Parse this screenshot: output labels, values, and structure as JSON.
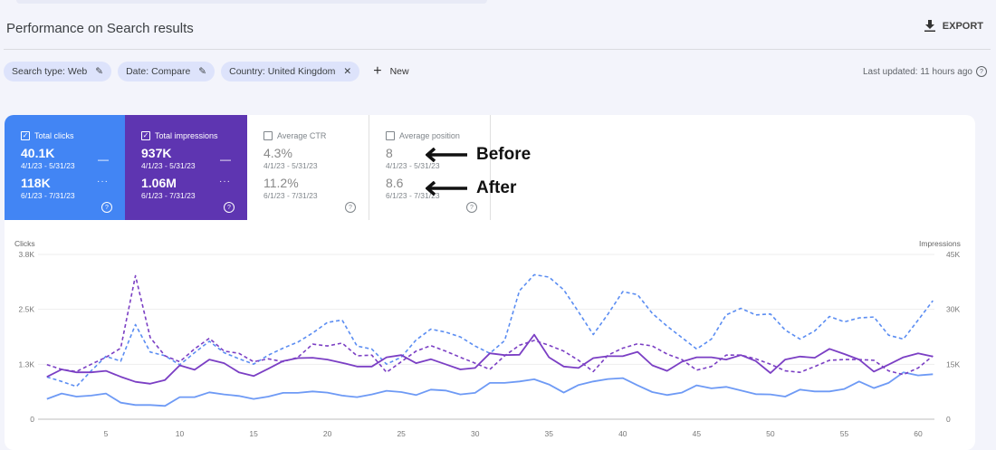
{
  "header": {
    "title": "Performance on Search results",
    "export_label": "EXPORT",
    "export_icon": "download-icon"
  },
  "filters": {
    "chips": [
      {
        "label": "Search type: Web",
        "icon": "pencil-icon"
      },
      {
        "label": "Date: Compare",
        "icon": "pencil-icon"
      },
      {
        "label": "Country: United Kingdom",
        "icon": "close-icon"
      }
    ],
    "new_label": "New",
    "last_updated": "Last updated: 11 hours ago"
  },
  "metrics": [
    {
      "label": "Total clicks",
      "checked": true,
      "value_before": "40.1K",
      "range_before": "4/1/23 - 5/31/23",
      "value_after": "118K",
      "range_after": "6/1/23 - 7/31/23",
      "color": "#4285f4"
    },
    {
      "label": "Total impressions",
      "checked": true,
      "value_before": "937K",
      "range_before": "4/1/23 - 5/31/23",
      "value_after": "1.06M",
      "range_after": "6/1/23 - 7/31/23",
      "color": "#5e35b1"
    },
    {
      "label": "Average CTR",
      "checked": false,
      "value_before": "4.3%",
      "range_before": "4/1/23 - 5/31/23",
      "value_after": "11.2%",
      "range_after": "6/1/23 - 7/31/23"
    },
    {
      "label": "Average position",
      "checked": false,
      "value_before": "8",
      "range_before": "4/1/23 - 5/31/23",
      "value_after": "8.6",
      "range_after": "6/1/23 - 7/31/23"
    }
  ],
  "annotations": {
    "before": "Before",
    "after": "After"
  },
  "chart_data": {
    "type": "line",
    "ylabel_left": "Clicks",
    "ylabel_right": "Impressions",
    "yticks_left": [
      "0",
      "1.3K",
      "2.5K",
      "3.8K"
    ],
    "yticks_right": [
      "0",
      "15K",
      "30K",
      "45K"
    ],
    "ylim_left": [
      0,
      3750
    ],
    "ylim_right": [
      0,
      45000
    ],
    "xticks": [
      5,
      10,
      15,
      20,
      25,
      30,
      35,
      40,
      45,
      50,
      55,
      60
    ],
    "xlim": [
      1,
      61
    ],
    "grid": true,
    "series": [
      {
        "axis": "left",
        "style": "solid",
        "color": "#6e9af5",
        "values": [
          461,
          585,
          516,
          537,
          585,
          378,
          323,
          323,
          303,
          502,
          502,
          612,
          564,
          530,
          461,
          516,
          599,
          599,
          633,
          606,
          537,
          502,
          564,
          647,
          619,
          550,
          674,
          654,
          564,
          599,
          826,
          826,
          860,
          908,
          791,
          606,
          778,
          860,
          915,
          936,
          771,
          619,
          550,
          606,
          771,
          702,
          736,
          654,
          571,
          564,
          516,
          674,
          633,
          633,
          688,
          860,
          709,
          826,
          1066,
          998,
          1025
        ]
      },
      {
        "axis": "left",
        "style": "dashed",
        "color": "#5b8df2",
        "values": [
          963,
          860,
          743,
          1101,
          1431,
          1321,
          2154,
          1528,
          1445,
          1239,
          1514,
          1775,
          1514,
          1376,
          1252,
          1459,
          1617,
          1755,
          1961,
          2202,
          2257,
          1665,
          1596,
          1252,
          1411,
          1803,
          2050,
          1982,
          1872,
          1665,
          1500,
          1789,
          2924,
          3289,
          3234,
          2945,
          2443,
          1927,
          2395,
          2904,
          2835,
          2408,
          2119,
          1858,
          1596,
          1823,
          2374,
          2525,
          2374,
          2395,
          2030,
          1823,
          2009,
          2339,
          2216,
          2305,
          2326,
          1913,
          1823,
          2257,
          2697
        ]
      },
      {
        "axis": "right",
        "style": "solid",
        "color": "#7b3fc4",
        "values": [
          11560,
          13600,
          12800,
          12800,
          13200,
          11600,
          10200,
          9700,
          10700,
          14700,
          13500,
          16300,
          15300,
          12800,
          11800,
          13800,
          15900,
          16700,
          16800,
          16300,
          15400,
          14400,
          14400,
          16900,
          17500,
          15300,
          16400,
          15000,
          13600,
          14000,
          18000,
          17500,
          17600,
          23100,
          16900,
          14400,
          14000,
          16700,
          17200,
          17200,
          18400,
          14700,
          13200,
          15700,
          16900,
          16900,
          16300,
          17500,
          15900,
          12600,
          16300,
          17100,
          16800,
          19200,
          17800,
          16300,
          13000,
          14900,
          16900,
          18000,
          17100
        ]
      },
      {
        "axis": "right",
        "style": "dashed",
        "color": "#7b3fc4",
        "values": [
          14900,
          13600,
          13000,
          15000,
          16900,
          19400,
          39200,
          22300,
          17300,
          15700,
          19200,
          22100,
          18600,
          18000,
          15700,
          16500,
          15700,
          16900,
          20500,
          20000,
          20800,
          17300,
          17500,
          12800,
          15700,
          18600,
          20100,
          18600,
          16900,
          15300,
          13600,
          17300,
          20200,
          21500,
          20200,
          18600,
          16100,
          13000,
          17500,
          19400,
          20600,
          20000,
          17800,
          16300,
          13400,
          14400,
          17500,
          17500,
          16500,
          15000,
          13200,
          12800,
          14400,
          16100,
          16300,
          16300,
          16100,
          13200,
          12200,
          14000,
          17300
        ]
      }
    ]
  }
}
